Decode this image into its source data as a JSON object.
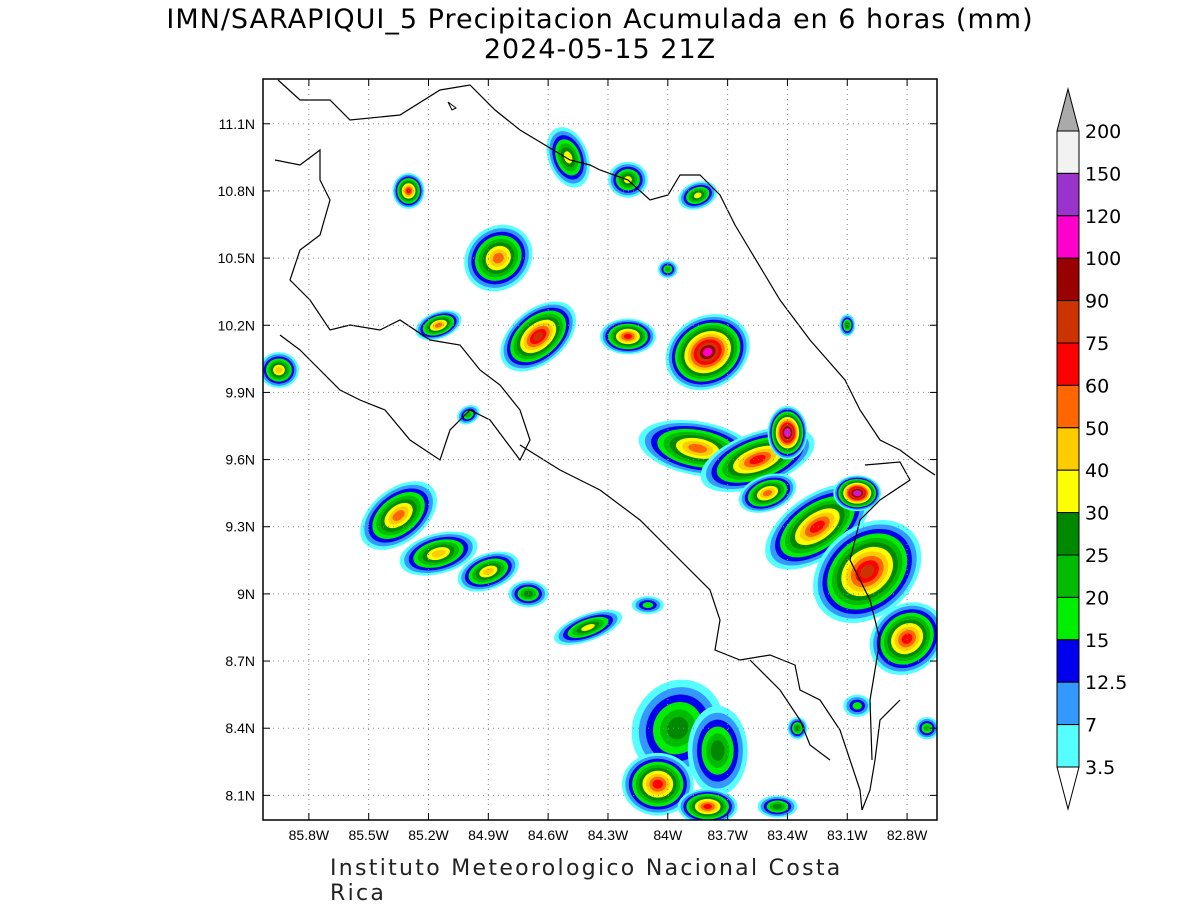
{
  "title": {
    "line1": "IMN/SARAPIQUI_5 Precipitacion Acumulada en 6 horas (mm)",
    "line2": "2024-05-15 21Z"
  },
  "footer": "Instituto Meteorologico Nacional Costa Rica",
  "map": {
    "lon_range": [
      -86.03,
      -82.65
    ],
    "lat_range": [
      7.99,
      11.3
    ],
    "lon_ticks": [
      {
        "value": -85.8,
        "label": "85.8W"
      },
      {
        "value": -85.5,
        "label": "85.5W"
      },
      {
        "value": -85.2,
        "label": "85.2W"
      },
      {
        "value": -84.9,
        "label": "84.9W"
      },
      {
        "value": -84.6,
        "label": "84.6W"
      },
      {
        "value": -84.3,
        "label": "84.3W"
      },
      {
        "value": -84.0,
        "label": "84W"
      },
      {
        "value": -83.7,
        "label": "83.7W"
      },
      {
        "value": -83.4,
        "label": "83.4W"
      },
      {
        "value": -83.1,
        "label": "83.1W"
      },
      {
        "value": -82.8,
        "label": "82.8W"
      }
    ],
    "lat_ticks": [
      {
        "value": 11.1,
        "label": "11.1N"
      },
      {
        "value": 10.8,
        "label": "10.8N"
      },
      {
        "value": 10.5,
        "label": "10.5N"
      },
      {
        "value": 10.2,
        "label": "10.2N"
      },
      {
        "value": 9.9,
        "label": "9.9N"
      },
      {
        "value": 9.6,
        "label": "9.6N"
      },
      {
        "value": 9.3,
        "label": "9.3N"
      },
      {
        "value": 9.0,
        "label": "9N"
      },
      {
        "value": 8.7,
        "label": "8.7N"
      },
      {
        "value": 8.4,
        "label": "8.4N"
      },
      {
        "value": 8.1,
        "label": "8.1N"
      }
    ],
    "grid": true
  },
  "colorbar": {
    "unit": "mm",
    "levels": [
      {
        "label": "3.5",
        "color": "#55ffff"
      },
      {
        "label": "7",
        "color": "#3399ff"
      },
      {
        "label": "12.5",
        "color": "#0000ee"
      },
      {
        "label": "15",
        "color": "#00ee00"
      },
      {
        "label": "20",
        "color": "#00bb00"
      },
      {
        "label": "25",
        "color": "#008800"
      },
      {
        "label": "30",
        "color": "#ffff00"
      },
      {
        "label": "40",
        "color": "#ffcc00"
      },
      {
        "label": "50",
        "color": "#ff6600"
      },
      {
        "label": "60",
        "color": "#ff0000"
      },
      {
        "label": "75",
        "color": "#cc3300"
      },
      {
        "label": "90",
        "color": "#990000"
      },
      {
        "label": "100",
        "color": "#ff00cc"
      },
      {
        "label": "120",
        "color": "#9933cc"
      },
      {
        "label": "150",
        "color": "#f2f2f2"
      },
      {
        "label": "200",
        "color": "#aaaaaa"
      }
    ]
  },
  "cells": [
    {
      "lon": -85.35,
      "lat": 9.35,
      "rx": 0.22,
      "ry": 0.12,
      "rot": 38,
      "peak": 50
    },
    {
      "lon": -85.15,
      "lat": 9.18,
      "rx": 0.2,
      "ry": 0.09,
      "rot": 15,
      "peak": 40
    },
    {
      "lon": -84.9,
      "lat": 9.1,
      "rx": 0.16,
      "ry": 0.08,
      "rot": 20,
      "peak": 40
    },
    {
      "lon": -84.7,
      "lat": 9.0,
      "rx": 0.1,
      "ry": 0.06,
      "rot": 0,
      "peak": 25
    },
    {
      "lon": -84.4,
      "lat": 8.85,
      "rx": 0.18,
      "ry": 0.06,
      "rot": 20,
      "peak": 30
    },
    {
      "lon": -84.1,
      "lat": 8.95,
      "rx": 0.08,
      "ry": 0.04,
      "rot": 0,
      "peak": 15
    },
    {
      "lon": -83.95,
      "lat": 8.4,
      "rx": 0.25,
      "ry": 0.2,
      "rot": 60,
      "peak": 25
    },
    {
      "lon": -83.75,
      "lat": 8.3,
      "rx": 0.15,
      "ry": 0.2,
      "rot": 0,
      "peak": 25
    },
    {
      "lon": -84.05,
      "lat": 8.15,
      "rx": 0.18,
      "ry": 0.14,
      "rot": 0,
      "peak": 60
    },
    {
      "lon": -83.8,
      "lat": 8.05,
      "rx": 0.15,
      "ry": 0.08,
      "rot": 0,
      "peak": 60
    },
    {
      "lon": -83.45,
      "lat": 8.05,
      "rx": 0.1,
      "ry": 0.05,
      "rot": 0,
      "peak": 25
    },
    {
      "lon": -83.85,
      "lat": 9.65,
      "rx": 0.3,
      "ry": 0.12,
      "rot": -10,
      "peak": 50
    },
    {
      "lon": -83.55,
      "lat": 9.6,
      "rx": 0.3,
      "ry": 0.12,
      "rot": 20,
      "peak": 60
    },
    {
      "lon": -83.4,
      "lat": 9.72,
      "rx": 0.1,
      "ry": 0.12,
      "rot": 0,
      "peak": 120
    },
    {
      "lon": -83.25,
      "lat": 9.3,
      "rx": 0.3,
      "ry": 0.14,
      "rot": 35,
      "peak": 60
    },
    {
      "lon": -83.05,
      "lat": 9.45,
      "rx": 0.12,
      "ry": 0.08,
      "rot": 0,
      "peak": 120
    },
    {
      "lon": -83.0,
      "lat": 9.1,
      "rx": 0.3,
      "ry": 0.2,
      "rot": 40,
      "peak": 75
    },
    {
      "lon": -82.8,
      "lat": 8.8,
      "rx": 0.2,
      "ry": 0.15,
      "rot": 40,
      "peak": 60
    },
    {
      "lon": -83.8,
      "lat": 10.08,
      "rx": 0.22,
      "ry": 0.16,
      "rot": 30,
      "peak": 100
    },
    {
      "lon": -84.2,
      "lat": 10.15,
      "rx": 0.14,
      "ry": 0.08,
      "rot": 0,
      "peak": 60
    },
    {
      "lon": -84.65,
      "lat": 10.15,
      "rx": 0.22,
      "ry": 0.12,
      "rot": 40,
      "peak": 75
    },
    {
      "lon": -84.85,
      "lat": 10.5,
      "rx": 0.18,
      "ry": 0.14,
      "rot": 40,
      "peak": 50
    },
    {
      "lon": -85.15,
      "lat": 10.2,
      "rx": 0.12,
      "ry": 0.06,
      "rot": 20,
      "peak": 50
    },
    {
      "lon": -85.3,
      "lat": 10.8,
      "rx": 0.08,
      "ry": 0.08,
      "rot": 0,
      "peak": 60
    },
    {
      "lon": -85.95,
      "lat": 10.0,
      "rx": 0.1,
      "ry": 0.08,
      "rot": 0,
      "peak": 40
    },
    {
      "lon": -84.5,
      "lat": 10.95,
      "rx": 0.1,
      "ry": 0.14,
      "rot": 20,
      "peak": 30
    },
    {
      "lon": -84.2,
      "lat": 10.85,
      "rx": 0.1,
      "ry": 0.08,
      "rot": 0,
      "peak": 30
    },
    {
      "lon": -83.85,
      "lat": 10.78,
      "rx": 0.1,
      "ry": 0.06,
      "rot": 20,
      "peak": 30
    },
    {
      "lon": -83.5,
      "lat": 9.45,
      "rx": 0.15,
      "ry": 0.08,
      "rot": 20,
      "peak": 50
    },
    {
      "lon": -83.1,
      "lat": 10.2,
      "rx": 0.04,
      "ry": 0.05,
      "rot": 0,
      "peak": 25
    },
    {
      "lon": -83.05,
      "lat": 8.5,
      "rx": 0.07,
      "ry": 0.05,
      "rot": 0,
      "peak": 15
    },
    {
      "lon": -82.7,
      "lat": 8.4,
      "rx": 0.06,
      "ry": 0.05,
      "rot": 0,
      "peak": 20
    },
    {
      "lon": -83.35,
      "lat": 8.4,
      "rx": 0.05,
      "ry": 0.05,
      "rot": 0,
      "peak": 25
    },
    {
      "lon": -84.0,
      "lat": 10.45,
      "rx": 0.05,
      "ry": 0.04,
      "rot": 0,
      "peak": 20
    },
    {
      "lon": -85.0,
      "lat": 9.8,
      "rx": 0.06,
      "ry": 0.04,
      "rot": 30,
      "peak": 20
    }
  ]
}
